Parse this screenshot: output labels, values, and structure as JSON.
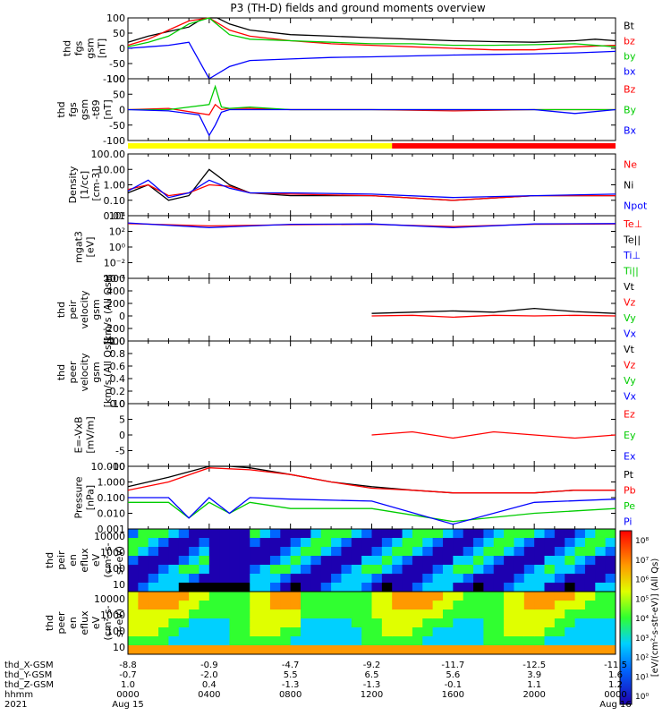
{
  "title": "P3 (TH-D) fields and ground moments overview",
  "colors": {
    "black": "#000000",
    "red": "#ff0000",
    "green": "#00cc00",
    "blue": "#0000ff",
    "yellow": "#ffff00"
  },
  "panels": [
    {
      "id": "fgs",
      "ylabel": [
        "thd",
        "fgs",
        "gsm",
        "[nT]"
      ],
      "ticks": [
        "100",
        "50",
        "0",
        "-50",
        "-100"
      ],
      "legend": [
        {
          "text": "Bt",
          "color": "#000000"
        },
        {
          "text": "bz",
          "color": "#ff0000"
        },
        {
          "text": "by",
          "color": "#00cc00"
        },
        {
          "text": "bx",
          "color": "#0000ff"
        }
      ]
    },
    {
      "id": "fgs-t89",
      "ylabel": [
        "thd",
        "fgs",
        "gsm",
        "-t89",
        "[nT]"
      ],
      "ticks": [
        "100",
        "50",
        "0",
        "-50",
        "-100"
      ],
      "legend": [
        {
          "text": "Bz",
          "color": "#ff0000"
        },
        {
          "text": "By",
          "color": "#00cc00"
        },
        {
          "text": "Bx",
          "color": "#0000ff"
        }
      ]
    },
    {
      "id": "density",
      "ylabel": [
        "Density",
        "[1/cc]",
        "[cm-3]"
      ],
      "ticks": [
        "100.00",
        "10.00",
        "1.00",
        "0.10",
        "0.01"
      ],
      "legend": [
        {
          "text": "Ne",
          "color": "#ff0000"
        },
        {
          "text": "Ni",
          "color": "#000000"
        },
        {
          "text": "Npot",
          "color": "#0000ff"
        }
      ]
    },
    {
      "id": "temp",
      "ylabel": [
        "mgat3",
        "[eV]"
      ],
      "ticks": [
        "10⁴",
        "10²",
        "10⁰",
        "10⁻²",
        "10⁻⁴"
      ],
      "legend": [
        {
          "text": "Te⊥",
          "color": "#ff0000"
        },
        {
          "text": "Te||",
          "color": "#000000"
        },
        {
          "text": "Ti⊥",
          "color": "#0000ff"
        },
        {
          "text": "Ti||",
          "color": "#00cc00"
        }
      ]
    },
    {
      "id": "peir-vel",
      "ylabel": [
        "thd",
        "peir",
        "velocity",
        "gsm",
        "[km/s (All Qs)]"
      ],
      "ticks": [
        "600",
        "400",
        "200",
        "0",
        "-200",
        "-400"
      ],
      "legend": [
        {
          "text": "Vt",
          "color": "#000000"
        },
        {
          "text": "Vz",
          "color": "#ff0000"
        },
        {
          "text": "Vy",
          "color": "#00cc00"
        },
        {
          "text": "Vx",
          "color": "#0000ff"
        }
      ]
    },
    {
      "id": "peer-vel",
      "ylabel": [
        "thd",
        "peer",
        "velocity",
        "gsm",
        "[km/s (All Qs)]"
      ],
      "ticks": [
        "1.0",
        "0.8",
        "0.6",
        "0.4",
        "0.2",
        "0.0"
      ],
      "legend": [
        {
          "text": "Vt",
          "color": "#000000"
        },
        {
          "text": "Vz",
          "color": "#ff0000"
        },
        {
          "text": "Vy",
          "color": "#00cc00"
        },
        {
          "text": "Vx",
          "color": "#0000ff"
        }
      ]
    },
    {
      "id": "efield",
      "ylabel": [
        "E=-VxB",
        "[mV/m]"
      ],
      "ticks": [
        "10",
        "5",
        "0",
        "-5",
        "-10"
      ],
      "legend": [
        {
          "text": "Ez",
          "color": "#ff0000"
        },
        {
          "text": "Ey",
          "color": "#00cc00"
        },
        {
          "text": "Ex",
          "color": "#0000ff"
        }
      ]
    },
    {
      "id": "pressure",
      "ylabel": [
        "Pressure",
        "[nPa]"
      ],
      "ticks": [
        "10.000",
        "1.000",
        "0.100",
        "0.010",
        "0.001"
      ],
      "legend": [
        {
          "text": "Pt",
          "color": "#000000"
        },
        {
          "text": "Pb",
          "color": "#ff0000"
        },
        {
          "text": "Pe",
          "color": "#00cc00"
        },
        {
          "text": "Pi",
          "color": "#0000ff"
        }
      ]
    },
    {
      "id": "peir-flux",
      "ylabel": [
        "thd",
        "peir",
        "en",
        "eflux",
        "eV",
        "(cm²-s-",
        "sr-eV)"
      ],
      "ticks": [
        "10000",
        "1000",
        "100",
        "10"
      ]
    },
    {
      "id": "peer-flux",
      "ylabel": [
        "thd",
        "peer",
        "en",
        "eflux",
        "eV",
        "(cm²-s-",
        "sr-eV)"
      ],
      "ticks": [
        "10000",
        "1000",
        "100",
        "10"
      ]
    }
  ],
  "colorbar": {
    "ticks": [
      "10⁸",
      "10⁷",
      "10⁶",
      "10⁵",
      "10⁴",
      "10³",
      "10²",
      "10¹",
      "10⁰"
    ],
    "label": "[eV/(cm²-s-str-eV)] (All Qs)"
  },
  "time_axis": {
    "rows": [
      {
        "label": "thd_X-GSM",
        "values": [
          "-8.8",
          "-0.9",
          "-4.7",
          "-9.2",
          "-11.7",
          "-12.5",
          "-11.5"
        ]
      },
      {
        "label": "thd_Y-GSM",
        "values": [
          "-0.7",
          "-2.0",
          "5.5",
          "6.5",
          "5.6",
          "3.9",
          "1.6"
        ]
      },
      {
        "label": "thd_Z-GSM",
        "values": [
          "1.0",
          "0.4",
          "-1.3",
          "-1.3",
          "-0.1",
          "1.1",
          "1.2"
        ]
      },
      {
        "label": "hhmm",
        "values": [
          "0000",
          "0400",
          "0800",
          "1200",
          "1600",
          "2000",
          "0000"
        ]
      },
      {
        "label": "2021",
        "values": [
          "Aug 15",
          "",
          "",
          "",
          "",
          "",
          "Aug 16"
        ]
      }
    ]
  },
  "chart_data": {
    "type": "line",
    "x_hours": [
      0,
      4,
      8,
      12,
      16,
      20,
      24
    ],
    "panels": [
      {
        "id": "fgs",
        "ylim": [
          -100,
          100
        ],
        "series": [
          {
            "name": "Bt",
            "color": "#000000",
            "x": [
              0,
              1,
              2,
              3,
              3.6,
              4,
              4.4,
              5,
              6,
              8,
              10,
              12,
              14,
              16,
              18,
              20,
              22,
              23,
              24
            ],
            "y": [
              20,
              40,
              55,
              70,
              95,
              100,
              100,
              80,
              60,
              45,
              40,
              35,
              30,
              25,
              22,
              20,
              25,
              30,
              25
            ]
          },
          {
            "name": "bz",
            "color": "#ff0000",
            "x": [
              0,
              1,
              2,
              3,
              4,
              5,
              6,
              8,
              10,
              12,
              14,
              16,
              18,
              20,
              22,
              24
            ],
            "y": [
              10,
              30,
              60,
              90,
              100,
              60,
              40,
              25,
              15,
              10,
              5,
              0,
              -5,
              -5,
              5,
              10
            ]
          },
          {
            "name": "by",
            "color": "#00cc00",
            "x": [
              0,
              1,
              2,
              3,
              4,
              5,
              6,
              8,
              10,
              12,
              14,
              16,
              18,
              20,
              22,
              24
            ],
            "y": [
              5,
              20,
              40,
              80,
              100,
              45,
              30,
              25,
              20,
              15,
              15,
              10,
              10,
              12,
              15,
              5
            ]
          },
          {
            "name": "bx",
            "color": "#0000ff",
            "x": [
              0,
              1,
              2,
              3,
              4,
              5,
              6,
              8,
              10,
              12,
              14,
              16,
              18,
              20,
              22,
              24
            ],
            "y": [
              0,
              5,
              10,
              20,
              -100,
              -60,
              -40,
              -35,
              -30,
              -28,
              -25,
              -22,
              -20,
              -18,
              -15,
              -10
            ]
          }
        ]
      },
      {
        "id": "fgs-t89",
        "ylim": [
          -120,
          120
        ],
        "series": [
          {
            "name": "Bz",
            "color": "#ff0000",
            "x": [
              0,
              2,
              4,
              4.3,
              4.6,
              5,
              6,
              8,
              12,
              16,
              20,
              24
            ],
            "y": [
              0,
              5,
              -20,
              20,
              0,
              5,
              5,
              0,
              0,
              -5,
              0,
              0
            ]
          },
          {
            "name": "By",
            "color": "#00cc00",
            "x": [
              0,
              2,
              4,
              4.3,
              4.6,
              5,
              6,
              8,
              12,
              16,
              20,
              24
            ],
            "y": [
              0,
              0,
              20,
              90,
              10,
              5,
              10,
              0,
              0,
              0,
              0,
              0
            ]
          },
          {
            "name": "Bx",
            "color": "#0000ff",
            "x": [
              0,
              2,
              3.5,
              4,
              4.3,
              4.6,
              5,
              6,
              8,
              12,
              16,
              20,
              22,
              24
            ],
            "y": [
              0,
              -5,
              -20,
              -100,
              -60,
              -10,
              0,
              0,
              0,
              0,
              0,
              0,
              -15,
              0
            ]
          }
        ]
      },
      {
        "id": "density",
        "ylim": [
          0.01,
          100
        ],
        "series": [
          {
            "name": "Ni",
            "color": "#000000",
            "x": [
              0,
              1,
              2,
              3,
              4,
              5,
              6,
              8,
              12,
              16,
              20,
              24
            ],
            "y": [
              0.3,
              1,
              0.1,
              0.2,
              10,
              1,
              0.3,
              0.2,
              0.2,
              0.1,
              0.2,
              0.2
            ]
          },
          {
            "name": "Ne",
            "color": "#ff0000",
            "x": [
              0,
              1,
              2,
              3,
              4,
              5,
              6,
              8,
              12,
              16,
              20,
              24
            ],
            "y": [
              0.5,
              1,
              0.2,
              0.3,
              1,
              0.8,
              0.3,
              0.25,
              0.2,
              0.1,
              0.2,
              0.2
            ]
          },
          {
            "name": "Npot",
            "color": "#0000ff",
            "x": [
              0,
              1,
              2,
              3,
              4,
              5,
              6,
              8,
              12,
              16,
              20,
              24
            ],
            "y": [
              0.4,
              2,
              0.15,
              0.3,
              2,
              0.6,
              0.3,
              0.3,
              0.25,
              0.15,
              0.2,
              0.25
            ]
          }
        ]
      },
      {
        "id": "temp",
        "ylim": [
          0.0001,
          10000
        ],
        "series": [
          {
            "name": "Te⊥",
            "color": "#ff0000",
            "x": [
              0,
              4,
              8,
              12,
              16,
              20,
              24
            ],
            "y": [
              1000,
              500,
              700,
              800,
              400,
              800,
              900
            ]
          },
          {
            "name": "Ti⊥",
            "color": "#0000ff",
            "x": [
              0,
              4,
              8,
              12,
              16,
              20,
              24
            ],
            "y": [
              1200,
              300,
              800,
              900,
              300,
              900,
              1000
            ]
          }
        ]
      },
      {
        "id": "peir-vel",
        "ylim": [
          -400,
          600
        ],
        "series": [
          {
            "name": "Vt",
            "color": "#000000",
            "x": [
              12,
              14,
              16,
              18,
              20,
              22,
              24
            ],
            "y": [
              40,
              60,
              80,
              60,
              120,
              70,
              40
            ]
          },
          {
            "name": "Vz",
            "color": "#ff0000",
            "x": [
              12,
              14,
              16,
              18,
              20,
              22,
              24
            ],
            "y": [
              0,
              10,
              -20,
              10,
              0,
              10,
              0
            ]
          }
        ]
      },
      {
        "id": "efield",
        "ylim": [
          -10,
          10
        ],
        "series": [
          {
            "name": "Ez",
            "color": "#ff0000",
            "x": [
              12,
              14,
              16,
              18,
              20,
              22,
              24
            ],
            "y": [
              0,
              1,
              -1,
              1,
              0,
              -1,
              0
            ]
          }
        ]
      },
      {
        "id": "pressure",
        "ylim": [
          0.001,
          10
        ],
        "series": [
          {
            "name": "Pt",
            "color": "#000000",
            "x": [
              0,
              2,
              4,
              5,
              6,
              8,
              10,
              12,
              14,
              16,
              18,
              20,
              22,
              24
            ],
            "y": [
              0.5,
              2,
              10,
              10,
              8,
              3,
              1,
              0.5,
              0.3,
              0.2,
              0.2,
              0.2,
              0.3,
              0.3
            ]
          },
          {
            "name": "Pb",
            "color": "#ff0000",
            "x": [
              0,
              2,
              4,
              6,
              8,
              10,
              12,
              14,
              16,
              18,
              20,
              22,
              24
            ],
            "y": [
              0.3,
              1,
              8,
              6,
              3,
              1,
              0.4,
              0.3,
              0.2,
              0.2,
              0.2,
              0.3,
              0.3
            ]
          },
          {
            "name": "Pe",
            "color": "#00cc00",
            "x": [
              0,
              2,
              3,
              4,
              5,
              6,
              8,
              12,
              16,
              20,
              24
            ],
            "y": [
              0.05,
              0.05,
              0.005,
              0.05,
              0.01,
              0.05,
              0.02,
              0.02,
              0.003,
              0.01,
              0.02
            ]
          },
          {
            "name": "Pi",
            "color": "#0000ff",
            "x": [
              0,
              2,
              3,
              4,
              5,
              6,
              8,
              12,
              16,
              20,
              24
            ],
            "y": [
              0.1,
              0.1,
              0.005,
              0.1,
              0.01,
              0.1,
              0.08,
              0.06,
              0.002,
              0.05,
              0.08
            ]
          }
        ]
      }
    ]
  }
}
